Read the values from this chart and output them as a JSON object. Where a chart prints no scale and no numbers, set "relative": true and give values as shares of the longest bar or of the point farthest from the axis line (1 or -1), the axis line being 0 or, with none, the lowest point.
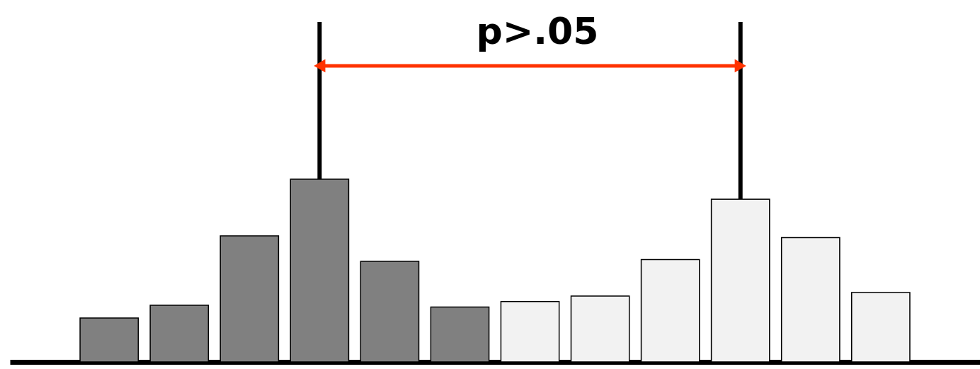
{
  "chart_data": {
    "type": "bar",
    "relative": true,
    "categories": [
      null,
      null,
      null,
      null,
      null,
      null,
      null,
      null,
      null,
      null,
      null,
      null
    ],
    "values": [
      0.24,
      0.31,
      0.69,
      1.0,
      0.55,
      0.3,
      0.33,
      0.36,
      0.56,
      0.89,
      0.68,
      0.38
    ],
    "colors": [
      "#808080",
      "#808080",
      "#808080",
      "#808080",
      "#808080",
      "#808080",
      "#f2f2f2",
      "#f2f2f2",
      "#f2f2f2",
      "#f2f2f2",
      "#f2f2f2",
      "#f2f2f2"
    ],
    "annotations": [
      "p>.05"
    ],
    "grid": false,
    "tick_labels": false
  }
}
